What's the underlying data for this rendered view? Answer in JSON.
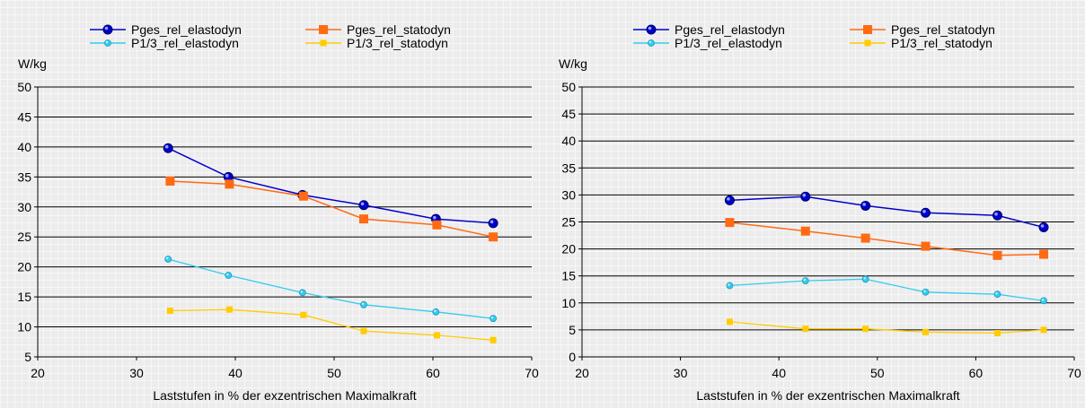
{
  "chart_data": [
    {
      "type": "line",
      "ylabel": "W/kg",
      "xlabel": "Laststufen in % der exzentrischen Maximalkraft",
      "xlim": [
        20,
        70
      ],
      "ylim": [
        5,
        50
      ],
      "xticks": [
        "20",
        "30",
        "40",
        "50",
        "60",
        "70"
      ],
      "yticks": [
        "5",
        "10",
        "15",
        "20",
        "25",
        "30",
        "35",
        "40",
        "45",
        "50"
      ],
      "grid": true,
      "legend_position": "top",
      "series": [
        {
          "name": "Pges_rel_elastodyn",
          "color": "#0000cc",
          "marker": "circle-large",
          "x": [
            33.2,
            39.3,
            46.8,
            53.0,
            60.3,
            66.1
          ],
          "y": [
            39.8,
            35.0,
            32.0,
            30.3,
            28.0,
            27.3
          ]
        },
        {
          "name": "Pges_rel_statodyn",
          "color": "#ff6a13",
          "marker": "square-large",
          "x": [
            33.4,
            39.4,
            46.9,
            53.0,
            60.4,
            66.1
          ],
          "y": [
            34.3,
            33.8,
            31.8,
            28.0,
            27.0,
            25.0
          ]
        },
        {
          "name": "P1/3_rel_elastodyn",
          "color": "#33ccee",
          "marker": "circle-small",
          "x": [
            33.2,
            39.3,
            46.8,
            53.0,
            60.3,
            66.1
          ],
          "y": [
            21.3,
            18.6,
            15.7,
            13.7,
            12.5,
            11.4
          ]
        },
        {
          "name": "P1/3_rel_statodyn",
          "color": "#ffcc00",
          "marker": "square-small",
          "x": [
            33.4,
            39.4,
            46.9,
            53.0,
            60.4,
            66.1
          ],
          "y": [
            12.7,
            12.9,
            12.0,
            9.3,
            8.6,
            7.8
          ]
        }
      ]
    },
    {
      "type": "line",
      "ylabel": "W/kg",
      "xlabel": "Laststufen in % der exzentrischen Maximalkraft",
      "xlim": [
        20,
        70
      ],
      "ylim": [
        0,
        50
      ],
      "xticks": [
        "20",
        "30",
        "40",
        "50",
        "60",
        "70"
      ],
      "yticks": [
        "0",
        "5",
        "10",
        "15",
        "20",
        "25",
        "30",
        "35",
        "40",
        "45",
        "50"
      ],
      "grid": true,
      "legend_position": "top",
      "series": [
        {
          "name": "Pges_rel_elastodyn",
          "color": "#0000cc",
          "marker": "circle-large",
          "x": [
            35.0,
            42.7,
            48.8,
            54.9,
            62.2,
            66.9
          ],
          "y": [
            29.0,
            29.7,
            28.0,
            26.7,
            26.2,
            24.0
          ]
        },
        {
          "name": "Pges_rel_statodyn",
          "color": "#ff6a13",
          "marker": "square-large",
          "x": [
            35.0,
            42.7,
            48.8,
            54.9,
            62.2,
            66.9
          ],
          "y": [
            24.9,
            23.3,
            22.0,
            20.5,
            18.8,
            19.0
          ]
        },
        {
          "name": "P1/3_rel_elastodyn",
          "color": "#33ccee",
          "marker": "circle-small",
          "x": [
            35.0,
            42.7,
            48.8,
            54.9,
            62.2,
            66.9
          ],
          "y": [
            13.2,
            14.1,
            14.4,
            12.0,
            11.6,
            10.4
          ]
        },
        {
          "name": "P1/3_rel_statodyn",
          "color": "#ffcc00",
          "marker": "square-small",
          "x": [
            35.0,
            42.7,
            48.8,
            54.9,
            62.2,
            66.9
          ],
          "y": [
            6.5,
            5.2,
            5.2,
            4.6,
            4.4,
            5.0
          ]
        }
      ]
    }
  ]
}
